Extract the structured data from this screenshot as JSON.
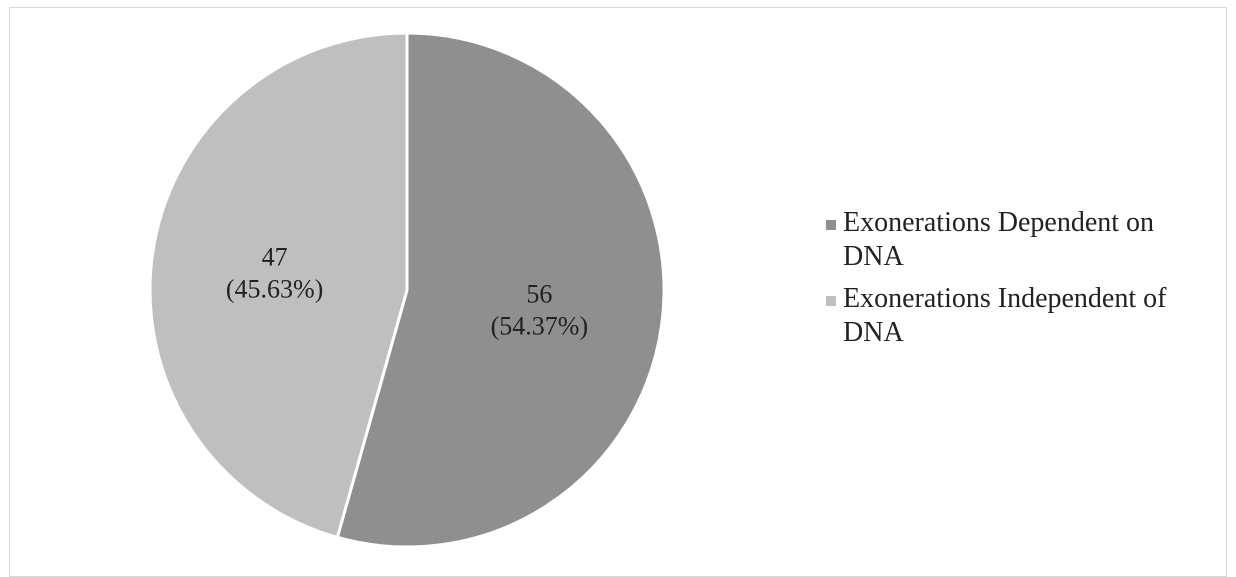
{
  "chart_data": {
    "type": "pie",
    "title": "",
    "legend_position": "right",
    "slices": [
      {
        "name": "Exonerations Dependent on DNA",
        "value": 56,
        "percent_label": "(54.37%)",
        "value_label": "56",
        "color": "#8f8f8f"
      },
      {
        "name": "Exonerations Independent of DNA",
        "value": 47,
        "percent_label": "(45.63%)",
        "value_label": "47",
        "color": "#bfbfbf"
      }
    ]
  }
}
